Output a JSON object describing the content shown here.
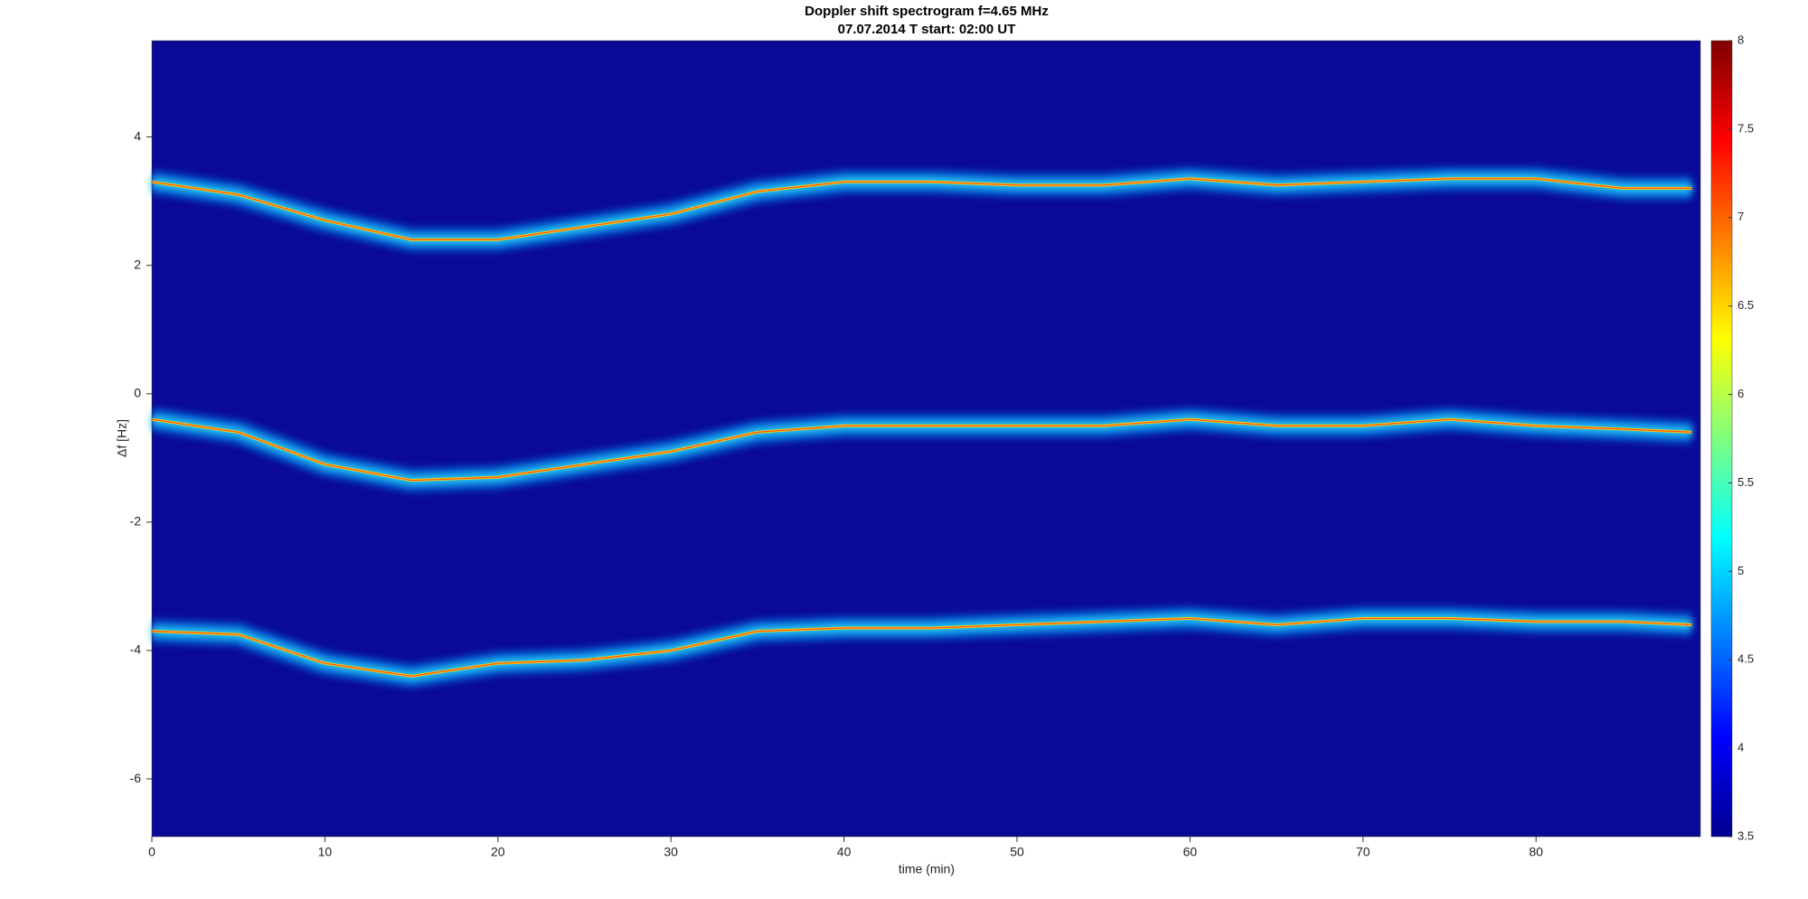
{
  "chart_data": {
    "type": "spectrogram",
    "title": "Doppler shift spectrogram f=4.65 MHz",
    "subtitle": "07.07.2014   T start: 02:00 UT",
    "xlabel": "time (min)",
    "ylabel": "Δf [Hz]",
    "xlim": [
      0,
      89.5
    ],
    "xticks": [
      0,
      10,
      20,
      30,
      40,
      50,
      60,
      70,
      80
    ],
    "ylim": [
      -6.9,
      5.5
    ],
    "yticks": [
      -6,
      -4,
      -2,
      0,
      2,
      4
    ],
    "colormap": "jet",
    "clim": [
      3.5,
      8
    ],
    "cticks": [
      3.5,
      4,
      4.5,
      5,
      5.5,
      6,
      6.5,
      7,
      7.5,
      8
    ],
    "x": [
      0,
      5,
      10,
      15,
      20,
      25,
      30,
      35,
      40,
      45,
      50,
      55,
      60,
      65,
      70,
      75,
      80,
      85,
      89
    ],
    "series": [
      {
        "color": "#ffd400",
        "values": [
          3.3,
          3.1,
          2.7,
          2.4,
          2.4,
          2.6,
          2.8,
          3.15,
          3.3,
          3.3,
          3.25,
          3.25,
          3.35,
          3.25,
          3.3,
          3.35,
          3.35,
          3.2,
          3.2
        ]
      },
      {
        "color": "#ffd400",
        "values": [
          -0.4,
          -0.6,
          -1.1,
          -1.35,
          -1.3,
          -1.1,
          -0.9,
          -0.6,
          -0.5,
          -0.5,
          -0.5,
          -0.5,
          -0.4,
          -0.5,
          -0.5,
          -0.4,
          -0.5,
          -0.55,
          -0.6
        ]
      },
      {
        "color": "#ffd400",
        "values": [
          -3.7,
          -3.75,
          -4.2,
          -4.4,
          -4.2,
          -4.15,
          -4.0,
          -3.7,
          -3.65,
          -3.65,
          -3.6,
          -3.55,
          -3.5,
          -3.6,
          -3.5,
          -3.5,
          -3.55,
          -3.55,
          -3.6
        ]
      }
    ]
  }
}
